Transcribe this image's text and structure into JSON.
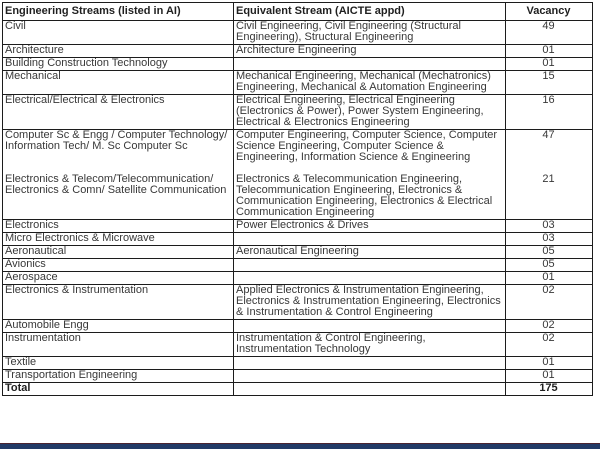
{
  "document": {
    "background": "#ffffff",
    "text_color": "#383838",
    "border_color": "#1c1c1c",
    "bottom_bar_color": "#223a66"
  },
  "table": {
    "columns": [
      {
        "label": "Engineering Streams (listed in AI)"
      },
      {
        "label": "Equivalent Stream (AICTE appd)"
      },
      {
        "label": "Vacancy"
      }
    ],
    "rows": [
      {
        "stream": "Civil",
        "equivalent": "Civil Engineering, Civil  Engineering (Structural  Engineering), Structural Engineering",
        "vacancy": "49"
      },
      {
        "stream": "Architecture",
        "equivalent": "Architecture  Engineering",
        "vacancy": "01"
      },
      {
        "stream": "Building Construction Technology",
        "equivalent": "",
        "vacancy": "01"
      },
      {
        "stream": "Mechanical",
        "equivalent": "Mechanical  Engineering, Mechanical (Mechatronics) Engineering, Mechanical & Automation  Engineering",
        "vacancy": "15"
      },
      {
        "stream": "Electrical/Electrical & Electronics",
        "equivalent": "Electrical  Engineering, Electrical Engineering (Electronics & Power), Power System Engineering, Electrical & Electronics Engineering",
        "vacancy": "16"
      },
      {
        "stream": "Computer Sc &  Engg / Computer Technology/ Information Tech/ M. Sc Computer Sc",
        "equivalent": "Computer  Engineering, Computer Science, Computer Science  Engineering, Computer Science &  Engineering, Information Science &  Engineering",
        "vacancy": "47"
      },
      {
        "stream": "Electronics & Telecom/Telecommunication/ Electronics & Comn/ Satellite Communication",
        "equivalent": "Electronics & Telecommunication Engineering, Telecommunication Engineering, Electronics & Communication  Engineering, Electronics & Electrical Communication  Engineering",
        "vacancy": "21"
      },
      {
        "stream": "Electronics",
        "equivalent": "Power Electronics & Drives",
        "vacancy": "03"
      },
      {
        "stream": "Micro Electronics & Microwave",
        "equivalent": "",
        "vacancy": "03"
      },
      {
        "stream": "Aeronautical",
        "equivalent": "Aeronautical Engineering",
        "vacancy": "05"
      },
      {
        "stream": "Avionics",
        "equivalent": "",
        "vacancy": "05"
      },
      {
        "stream": "Aerospace",
        "equivalent": "",
        "vacancy": "01"
      },
      {
        "stream": "Electronics & Instrumentation",
        "equivalent": "Applied Electronics & Instrumentation Engineering, Electronics & Instrumentation Engineering, Electronics & Instrumentation & Control Engineering",
        "vacancy": "02"
      },
      {
        "stream": "Automobile Engg",
        "equivalent": "",
        "vacancy": "02"
      },
      {
        "stream": "Instrumentation",
        "equivalent": "Instrumentation & Control Engineering, Instrumentation Technology",
        "vacancy": "02"
      },
      {
        "stream": "Textile",
        "equivalent": "",
        "vacancy": "01"
      },
      {
        "stream": "Transportation Engineering",
        "equivalent": "",
        "vacancy": "01"
      }
    ],
    "total": {
      "label": "Total",
      "vacancy": "175"
    }
  }
}
